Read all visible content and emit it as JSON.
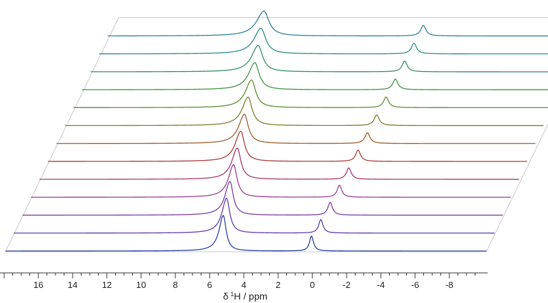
{
  "chart_data": {
    "type": "line",
    "subtype": "stacked-nmr-spectra",
    "xlabel": "δ ¹H / ppm",
    "xlabel_parts": {
      "delta": "δ",
      "superscript": "1",
      "nucleus": "H",
      "rest": " / ppm"
    },
    "x_axis_reversed": true,
    "xlim": [
      18,
      -9.5
    ],
    "xticks": [
      {
        "value": 16,
        "label": "16"
      },
      {
        "value": 14,
        "label": "14"
      },
      {
        "value": 12,
        "label": "12"
      },
      {
        "value": 10,
        "label": "10"
      },
      {
        "value": 8,
        "label": "8"
      },
      {
        "value": 6,
        "label": "6"
      },
      {
        "value": 4,
        "label": "4"
      },
      {
        "value": 2,
        "label": "2"
      },
      {
        "value": 0,
        "label": "0"
      },
      {
        "value": -2,
        "label": "-2"
      },
      {
        "value": -4,
        "label": "-4"
      },
      {
        "value": -6,
        "label": "-6"
      },
      {
        "value": -8,
        "label": "-8"
      }
    ],
    "minor_tick_step": 0.5,
    "grid": false,
    "legend": "none",
    "series": [
      {
        "color": "#2a3fa0",
        "peaks": [
          {
            "x": 5.2,
            "height": 1.0,
            "width": 0.2
          },
          {
            "x": 0.05,
            "height": 0.42,
            "width": 0.14
          }
        ]
      },
      {
        "color": "#5a3aa8",
        "peaks": [
          {
            "x": 5.25,
            "height": 0.98,
            "width": 0.22
          },
          {
            "x": -0.25,
            "height": 0.38,
            "width": 0.15
          }
        ]
      },
      {
        "color": "#7a3aa0",
        "peaks": [
          {
            "x": 5.3,
            "height": 0.95,
            "width": 0.23
          },
          {
            "x": -0.55,
            "height": 0.36,
            "width": 0.16
          }
        ]
      },
      {
        "color": "#9a3a92",
        "peaks": [
          {
            "x": 5.33,
            "height": 0.92,
            "width": 0.24
          },
          {
            "x": -0.85,
            "height": 0.34,
            "width": 0.16
          }
        ]
      },
      {
        "color": "#a8356a",
        "peaks": [
          {
            "x": 5.36,
            "height": 0.88,
            "width": 0.25
          },
          {
            "x": -1.15,
            "height": 0.32,
            "width": 0.17
          }
        ]
      },
      {
        "color": "#a83a38",
        "peaks": [
          {
            "x": 5.4,
            "height": 0.85,
            "width": 0.26
          },
          {
            "x": -1.45,
            "height": 0.32,
            "width": 0.17
          }
        ]
      },
      {
        "color": "#9a5a2a",
        "peaks": [
          {
            "x": 5.43,
            "height": 0.82,
            "width": 0.27
          },
          {
            "x": -1.75,
            "height": 0.3,
            "width": 0.18
          }
        ]
      },
      {
        "color": "#7e7a28",
        "peaks": [
          {
            "x": 5.46,
            "height": 0.8,
            "width": 0.28
          },
          {
            "x": -2.05,
            "height": 0.3,
            "width": 0.18
          }
        ]
      },
      {
        "color": "#5e8c2c",
        "peaks": [
          {
            "x": 5.5,
            "height": 0.78,
            "width": 0.29
          },
          {
            "x": -2.35,
            "height": 0.3,
            "width": 0.18
          }
        ]
      },
      {
        "color": "#3f9140",
        "peaks": [
          {
            "x": 5.55,
            "height": 0.76,
            "width": 0.3
          },
          {
            "x": -2.65,
            "height": 0.3,
            "width": 0.18
          }
        ]
      },
      {
        "color": "#2e8e64",
        "peaks": [
          {
            "x": 5.6,
            "height": 0.74,
            "width": 0.31
          },
          {
            "x": -2.95,
            "height": 0.3,
            "width": 0.18
          }
        ]
      },
      {
        "color": "#2a8c86",
        "peaks": [
          {
            "x": 5.68,
            "height": 0.72,
            "width": 0.33
          },
          {
            "x": -3.25,
            "height": 0.3,
            "width": 0.18
          }
        ]
      },
      {
        "color": "#2a80a0",
        "peaks": [
          {
            "x": 5.75,
            "height": 0.7,
            "width": 0.35
          },
          {
            "x": -3.55,
            "height": 0.3,
            "width": 0.18
          }
        ]
      }
    ]
  }
}
